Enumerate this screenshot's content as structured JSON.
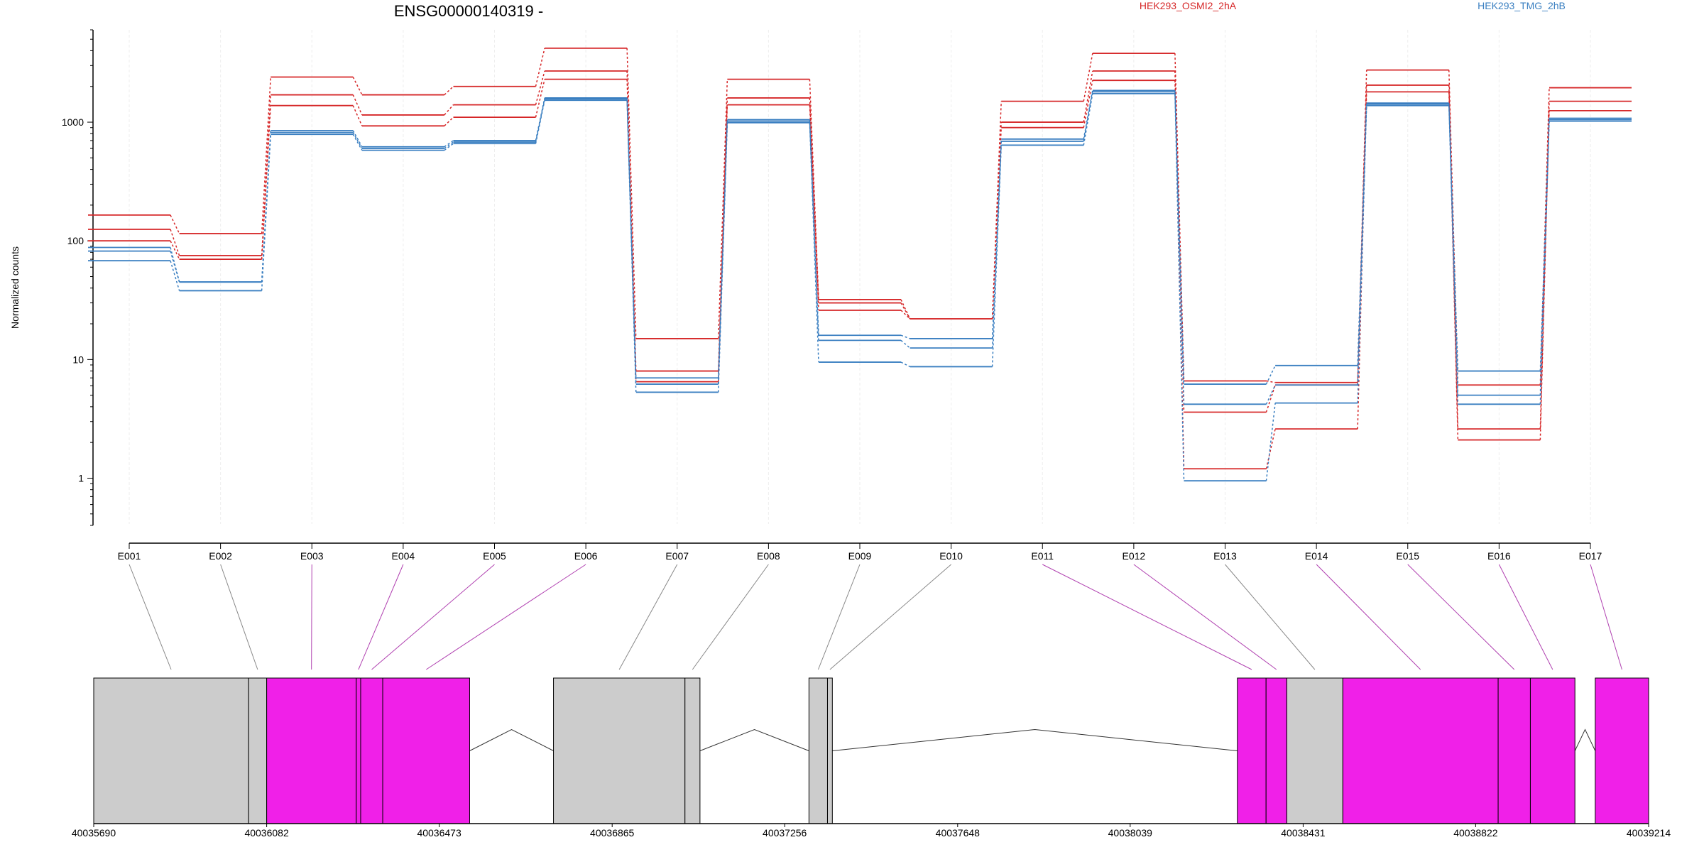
{
  "chart_data": {
    "type": "line",
    "title": "ENSG00000140319 -",
    "ylabel": "Normalized counts",
    "yscale": "log",
    "ylim": [
      0.4,
      6000
    ],
    "yticks": [
      "1",
      "10",
      "100",
      "1000"
    ],
    "grid": "vertical",
    "legend": {
      "placement": "top-right"
    },
    "categories": [
      "E001",
      "E002",
      "E003",
      "E004",
      "E005",
      "E006",
      "E007",
      "E008",
      "E009",
      "E010",
      "E011",
      "E012",
      "E013",
      "E014",
      "E015",
      "E016",
      "E017"
    ],
    "groups": [
      {
        "name": "HEK293_OSMI2_2hA",
        "color": "#d62728"
      },
      {
        "name": "HEK293_TMG_2hB",
        "color": "#3a7fc1"
      }
    ],
    "series": [
      {
        "group": 0,
        "values": [
          165,
          115,
          2400,
          1700,
          2000,
          4200,
          15,
          2300,
          32,
          22,
          1500,
          3800,
          6.6,
          6.4,
          2750,
          6.1,
          1950
        ]
      },
      {
        "group": 0,
        "values": [
          125,
          75,
          1700,
          1150,
          1400,
          2700,
          8,
          1600,
          30,
          22,
          1000,
          2700,
          3.6,
          6.1,
          2050,
          2.6,
          1500
        ]
      },
      {
        "group": 0,
        "values": [
          100,
          70,
          1380,
          930,
          1100,
          2300,
          6.5,
          1400,
          26,
          22,
          900,
          2250,
          1.2,
          2.6,
          1800,
          2.1,
          1250
        ]
      },
      {
        "group": 1,
        "values": [
          88,
          45,
          850,
          620,
          700,
          1600,
          7,
          1050,
          16,
          15,
          720,
          1850,
          6.2,
          8.9,
          1450,
          8,
          1080
        ]
      },
      {
        "group": 1,
        "values": [
          82,
          45,
          820,
          600,
          680,
          1570,
          6.2,
          1020,
          14.5,
          12.5,
          690,
          1800,
          4.2,
          6.1,
          1420,
          5,
          1050
        ]
      },
      {
        "group": 1,
        "values": [
          68,
          38,
          790,
          580,
          660,
          1530,
          5.3,
          990,
          9.5,
          8.7,
          640,
          1740,
          0.95,
          4.3,
          1380,
          4.2,
          1020
        ]
      }
    ],
    "gene_model": {
      "coordinate_ticks": [
        "40035690",
        "40036082",
        "40036473",
        "40036865",
        "40037256",
        "40037648",
        "40038039",
        "40038431",
        "40038822",
        "40039214"
      ],
      "tick_positions": [
        40035690,
        40036082,
        40036473,
        40036865,
        40037256,
        40037648,
        40038039,
        40038431,
        40038822,
        40039214
      ],
      "exons": [
        {
          "id": "E001",
          "start": 40035690,
          "end": 40036041,
          "color": "#cccccc",
          "highlight": false
        },
        {
          "id": "E002",
          "start": 40036041,
          "end": 40036082,
          "color": "#cccccc",
          "highlight": false
        },
        {
          "id": "E003",
          "start": 40036082,
          "end": 40036285,
          "color": "#f020e8",
          "highlight": true
        },
        {
          "id": "E004",
          "start": 40036285,
          "end": 40036295,
          "color": "#f020e8",
          "highlight": true
        },
        {
          "id": "E005",
          "start": 40036295,
          "end": 40036345,
          "color": "#f020e8",
          "highlight": true
        },
        {
          "id": "E006",
          "start": 40036345,
          "end": 40036542,
          "color": "#f020e8",
          "highlight": true
        },
        {
          "id": "E007",
          "start": 40036732,
          "end": 40037030,
          "color": "#cccccc",
          "highlight": false
        },
        {
          "id": "E008",
          "start": 40037030,
          "end": 40037064,
          "color": "#cccccc",
          "highlight": false
        },
        {
          "id": "E009",
          "start": 40037311,
          "end": 40037353,
          "color": "#cccccc",
          "highlight": false
        },
        {
          "id": "E010",
          "start": 40037353,
          "end": 40037364,
          "color": "#cccccc",
          "highlight": false
        },
        {
          "id": "E011",
          "start": 40038282,
          "end": 40038347,
          "color": "#f020e8",
          "highlight": true
        },
        {
          "id": "E012",
          "start": 40038347,
          "end": 40038394,
          "color": "#f020e8",
          "highlight": true
        },
        {
          "id": "E013",
          "start": 40038394,
          "end": 40038521,
          "color": "#cccccc",
          "highlight": false
        },
        {
          "id": "E014",
          "start": 40038521,
          "end": 40038873,
          "color": "#f020e8",
          "highlight": true
        },
        {
          "id": "E015",
          "start": 40038873,
          "end": 40038946,
          "color": "#f020e8",
          "highlight": true
        },
        {
          "id": "E016",
          "start": 40038946,
          "end": 40039047,
          "color": "#f020e8",
          "highlight": true
        },
        {
          "id": "E017",
          "start": 40039093,
          "end": 40039214,
          "color": "#f020e8",
          "highlight": true
        }
      ],
      "introns": [
        [
          40036542,
          40036732
        ],
        [
          40037064,
          40037311
        ],
        [
          40037364,
          40038282
        ],
        [
          40039047,
          40039093
        ]
      ]
    }
  }
}
